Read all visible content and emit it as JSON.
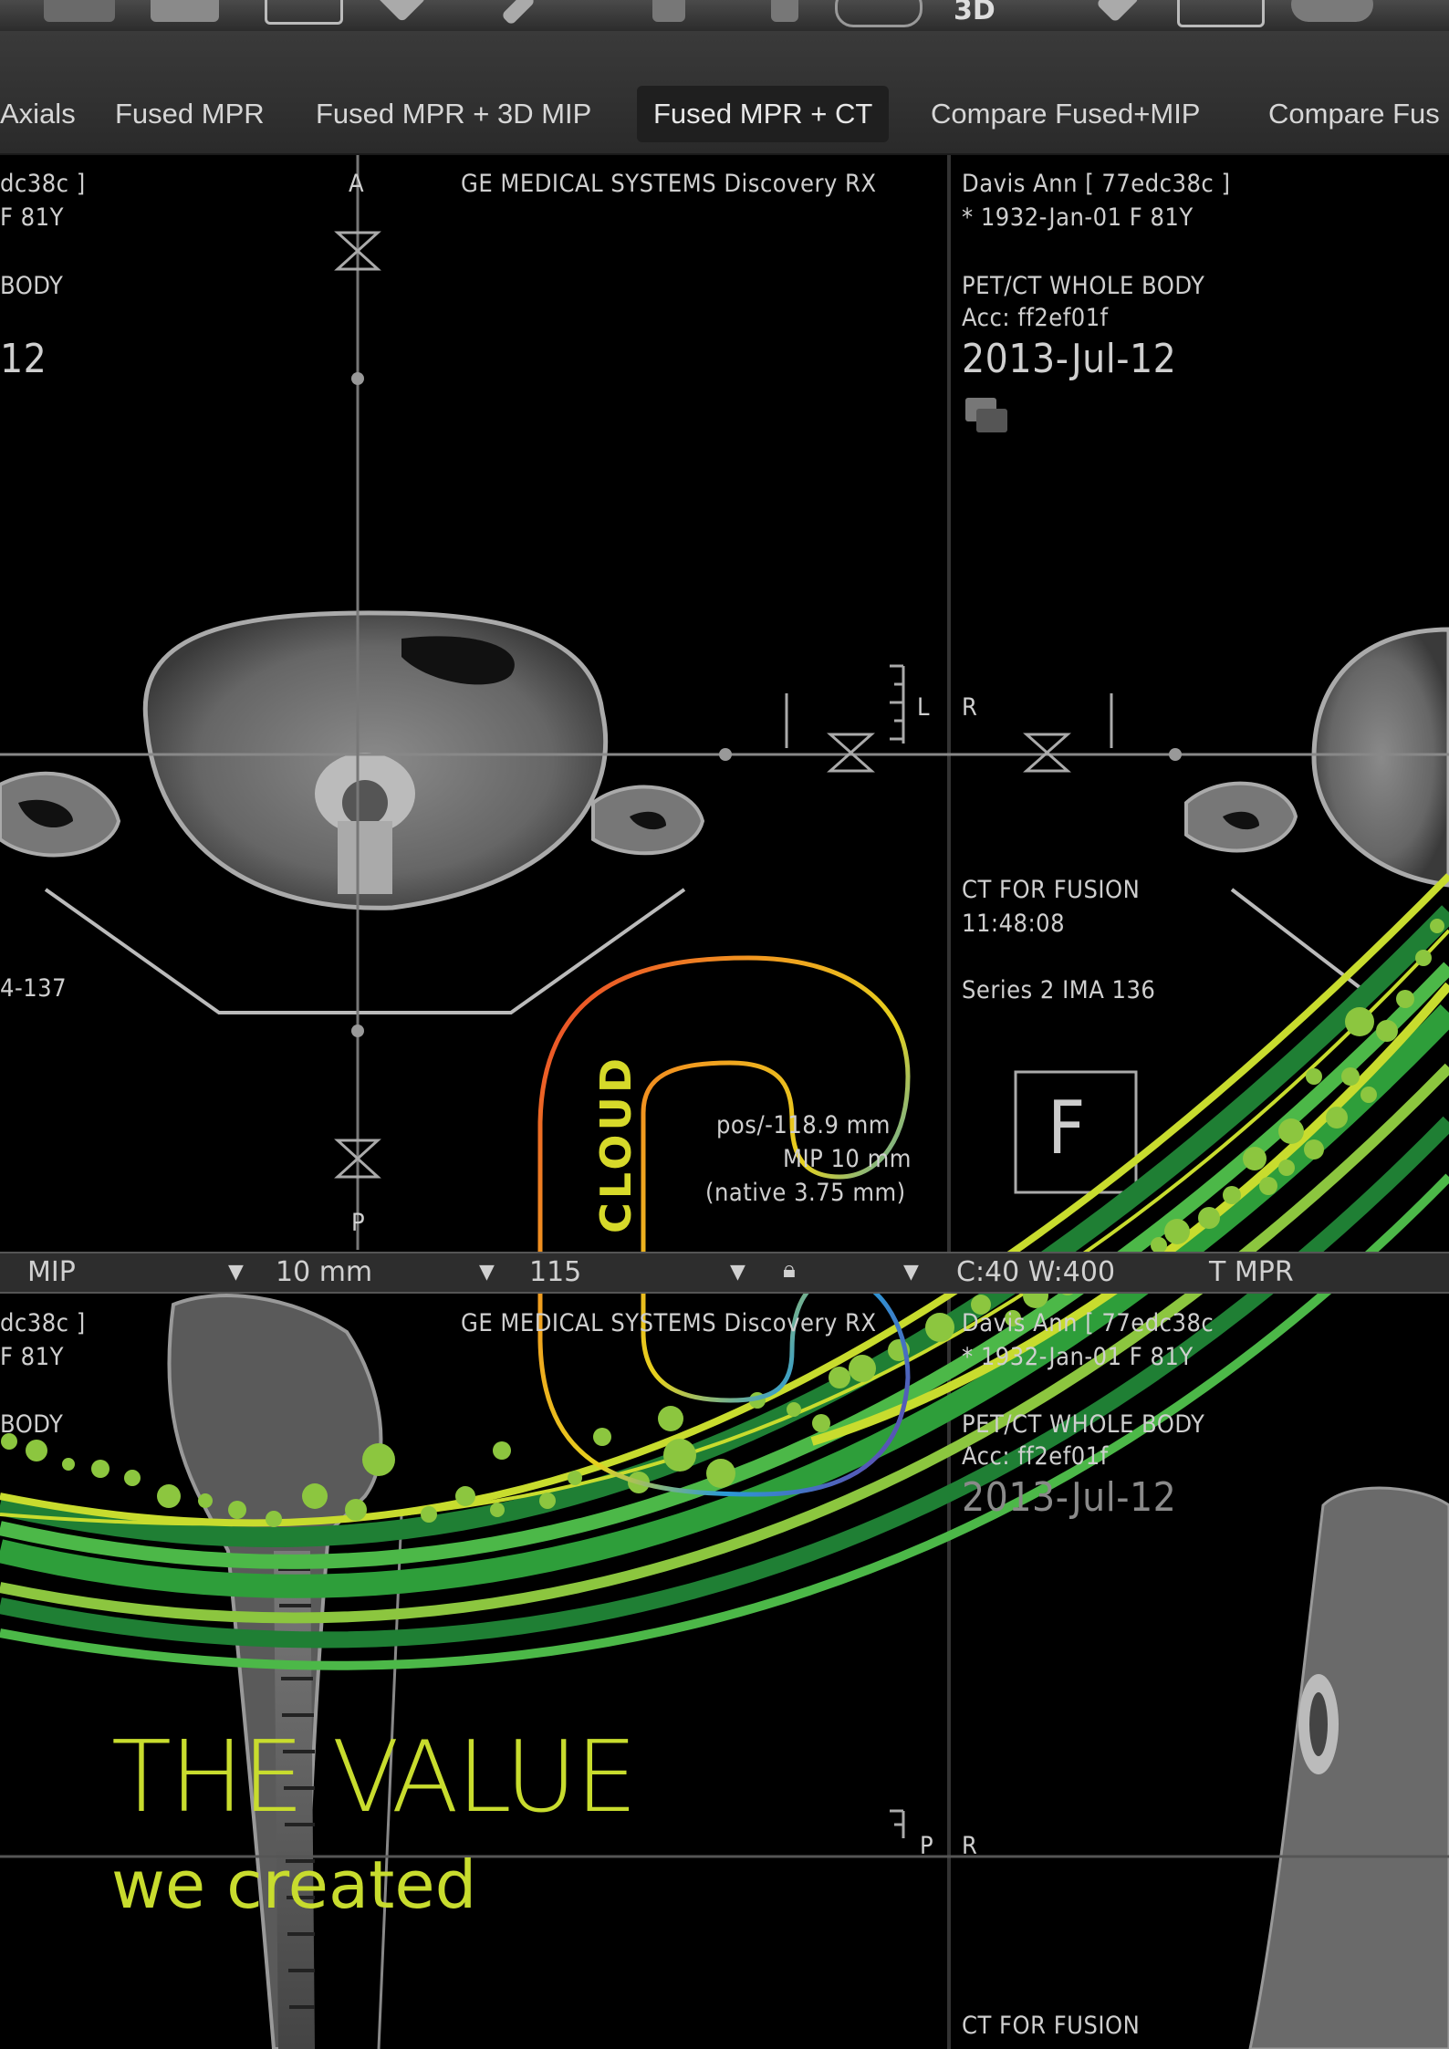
{
  "tabs": [
    {
      "label": "Axials",
      "active": false
    },
    {
      "label": "Fused MPR",
      "active": false
    },
    {
      "label": "Fused MPR + 3D MIP",
      "active": false
    },
    {
      "label": "Fused MPR + CT",
      "active": true
    },
    {
      "label": "Compare Fused+MIP",
      "active": false
    },
    {
      "label": "Compare Fus",
      "active": false
    }
  ],
  "toolbar": {
    "icon_3d_label": "3D"
  },
  "viewport_top_left": {
    "patient_id_partial": "dc38c ]",
    "patient_age_partial": "F 81Y",
    "study_partial": "BODY",
    "date_partial": "12",
    "manufacturer": "GE MEDICAL SYSTEMS Discovery RX",
    "orient_top": "A",
    "orient_bottom": "P",
    "orient_right": "L",
    "slice_partial": "4-137",
    "pos_line": "pos/-118.9 mm",
    "mip_line": "MIP 10 mm",
    "native_line": "(native 3.75 mm)"
  },
  "viewport_top_right": {
    "patient_name": "Davis Ann [ 77edc38c ]",
    "patient_dob": "* 1932-Jan-01 F 81Y",
    "study": "PET/CT WHOLE BODY",
    "accession": "Acc: ff2ef01f",
    "date": "2013-Jul-12",
    "orient_left": "R",
    "series_desc": "CT FOR FUSION",
    "time": "11:48:08",
    "series": "Series 2 IMA 136",
    "f_marker": "F"
  },
  "control_bar": {
    "mode": "MIP",
    "thickness": "10 mm",
    "slice_partial": "115",
    "window": "C:40 W:400",
    "view_partial": "T MPR"
  },
  "viewport_bottom_left": {
    "patient_id_partial": "dc38c ]",
    "patient_age_partial": "F 81Y",
    "study_partial": "BODY",
    "manufacturer": "GE MEDICAL SYSTEMS Discovery RX",
    "orient_right": "P"
  },
  "viewport_bottom_right": {
    "patient_name_partial": "Davis Ann [ 77edc38c",
    "dob_partial": "* 1932-Jan-01 F 81Y",
    "study_partial": "PET/CT WHOLE BODY",
    "accession_partial": "Acc: ff2ef01f",
    "date_partial": "2013-Jul-12",
    "orient_left": "R",
    "series_desc": "CT FOR FUSION"
  },
  "overlay": {
    "cloud_label": "CLOUD",
    "headline": "THE VALUE",
    "subline": "we created",
    "accent_color": "#c8dc2e",
    "stripe_colors": [
      "#2e9e3a",
      "#4cb848",
      "#8cc63f",
      "#c8dc2e",
      "#1f7f34"
    ]
  }
}
